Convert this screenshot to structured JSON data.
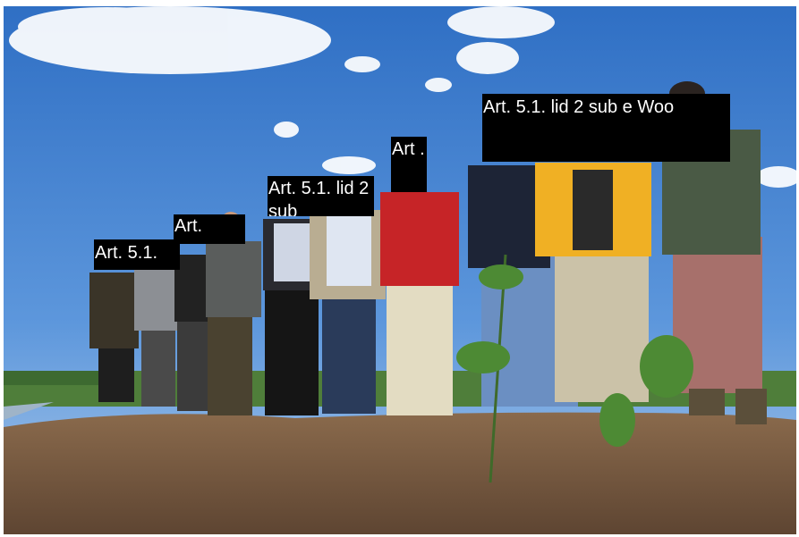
{
  "labels": [
    "Art. 5.1.",
    "Art.",
    "Art. 5.1. lid 2 sub",
    "Art .",
    "Art. 5.1. lid 2 sub e Woo"
  ]
}
